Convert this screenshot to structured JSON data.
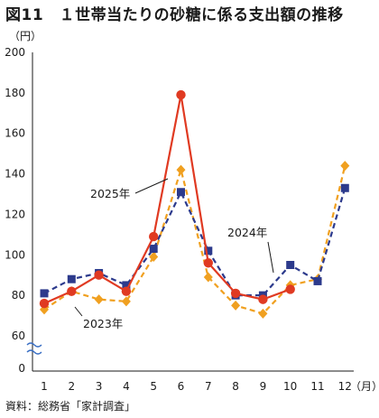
{
  "title": "図11　１世帯当たりの砂糖に係る支出額の推移",
  "source": "資料：総務省「家計調査」",
  "colors": {
    "y2025": "#e03a22",
    "y2024": "#2c3a8c",
    "y2023": "#f0a020",
    "axis": "#1a1a1a",
    "break": "#3a6fc4"
  },
  "chart_data": {
    "type": "line",
    "ylabel": "（円）",
    "xlabel": "（月）",
    "x": [
      1,
      2,
      3,
      4,
      5,
      6,
      7,
      8,
      9,
      10,
      11,
      12
    ],
    "x_tick_labels": [
      "1",
      "2",
      "3",
      "4",
      "5",
      "6",
      "7",
      "8",
      "9",
      "10",
      "11",
      "12"
    ],
    "y_ticks": [
      200,
      180,
      160,
      140,
      120,
      100,
      80,
      60,
      0
    ],
    "y_tick_labels": [
      "200",
      "180",
      "160",
      "140",
      "120",
      "100",
      "80",
      "60",
      "0"
    ],
    "ylim": [
      60,
      200
    ],
    "axis_break": "between 0 and 60",
    "grid": false,
    "series": [
      {
        "name": "2025年",
        "key": "y2025",
        "style": "solid",
        "marker": "circle",
        "values": [
          76,
          82,
          90,
          82,
          109,
          179,
          96,
          81,
          78,
          83,
          null,
          null
        ]
      },
      {
        "name": "2024年",
        "key": "y2024",
        "style": "dashed",
        "marker": "square",
        "values": [
          81,
          88,
          91,
          85,
          103,
          131,
          102,
          80,
          80,
          95,
          87,
          133
        ]
      },
      {
        "name": "2023年",
        "key": "y2023",
        "style": "dashed",
        "marker": "diamond",
        "values": [
          73,
          82,
          78,
          77,
          99,
          142,
          89,
          75,
          71,
          85,
          88,
          144
        ]
      }
    ]
  }
}
